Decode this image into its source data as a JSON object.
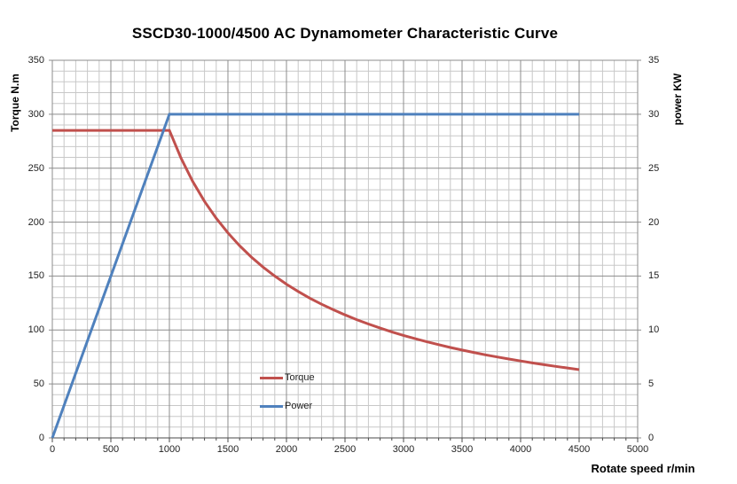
{
  "chart_data": {
    "type": "line",
    "title": "SSCD30-1000/4500 AC Dynamometer Characteristic Curve",
    "x_axis": {
      "label": "Rotate speed r/min",
      "min": 0,
      "max": 5000,
      "major_tick_step": 500,
      "minor_tick_step": 100,
      "major_ticks": [
        0,
        500,
        1000,
        1500,
        2000,
        2500,
        3000,
        3500,
        4000,
        4500,
        5000
      ]
    },
    "y_left_axis": {
      "label": "Torque N.m",
      "min": 0,
      "max": 350,
      "major_tick_step": 50,
      "minor_tick_step": 10,
      "major_ticks": [
        0,
        50,
        100,
        150,
        200,
        250,
        300,
        350
      ]
    },
    "y_right_axis": {
      "label": "power KW",
      "min": 0,
      "max": 35,
      "major_tick_step": 5,
      "minor_tick_step": 1,
      "major_ticks": [
        0,
        5,
        10,
        15,
        20,
        25,
        30,
        35
      ]
    },
    "grid": {
      "minor_color": "#C8C8C8",
      "major_color": "#8C8C8C",
      "axis_color": "#4A4A4A",
      "minor_grid_on": true,
      "major_grid_on": true
    },
    "legend": {
      "position": "inside-bottom-center"
    },
    "series": [
      {
        "name": "Torque",
        "axis": "left",
        "color": "#C0504D",
        "x": [
          0,
          1000,
          1100,
          1200,
          1300,
          1400,
          1500,
          1600,
          1700,
          1800,
          1900,
          2000,
          2100,
          2200,
          2300,
          2400,
          2500,
          2600,
          2700,
          2800,
          2900,
          3000,
          3100,
          3200,
          3300,
          3400,
          3500,
          3600,
          3700,
          3800,
          3900,
          4000,
          4100,
          4200,
          4300,
          4400,
          4500
        ],
        "y": [
          285,
          285,
          259.1,
          237.5,
          219.2,
          203.6,
          190,
          178.1,
          167.6,
          158.3,
          150,
          142.5,
          135.7,
          129.5,
          123.9,
          118.8,
          114,
          109.6,
          105.6,
          101.8,
          98.3,
          95,
          91.9,
          89.1,
          86.4,
          83.8,
          81.4,
          79.2,
          77,
          75,
          73.1,
          71.3,
          69.5,
          67.9,
          66.3,
          64.8,
          63.3
        ]
      },
      {
        "name": "Power",
        "axis": "right",
        "color": "#4F81BD",
        "x": [
          0,
          1000,
          4500
        ],
        "y": [
          0,
          30,
          30
        ]
      }
    ]
  }
}
